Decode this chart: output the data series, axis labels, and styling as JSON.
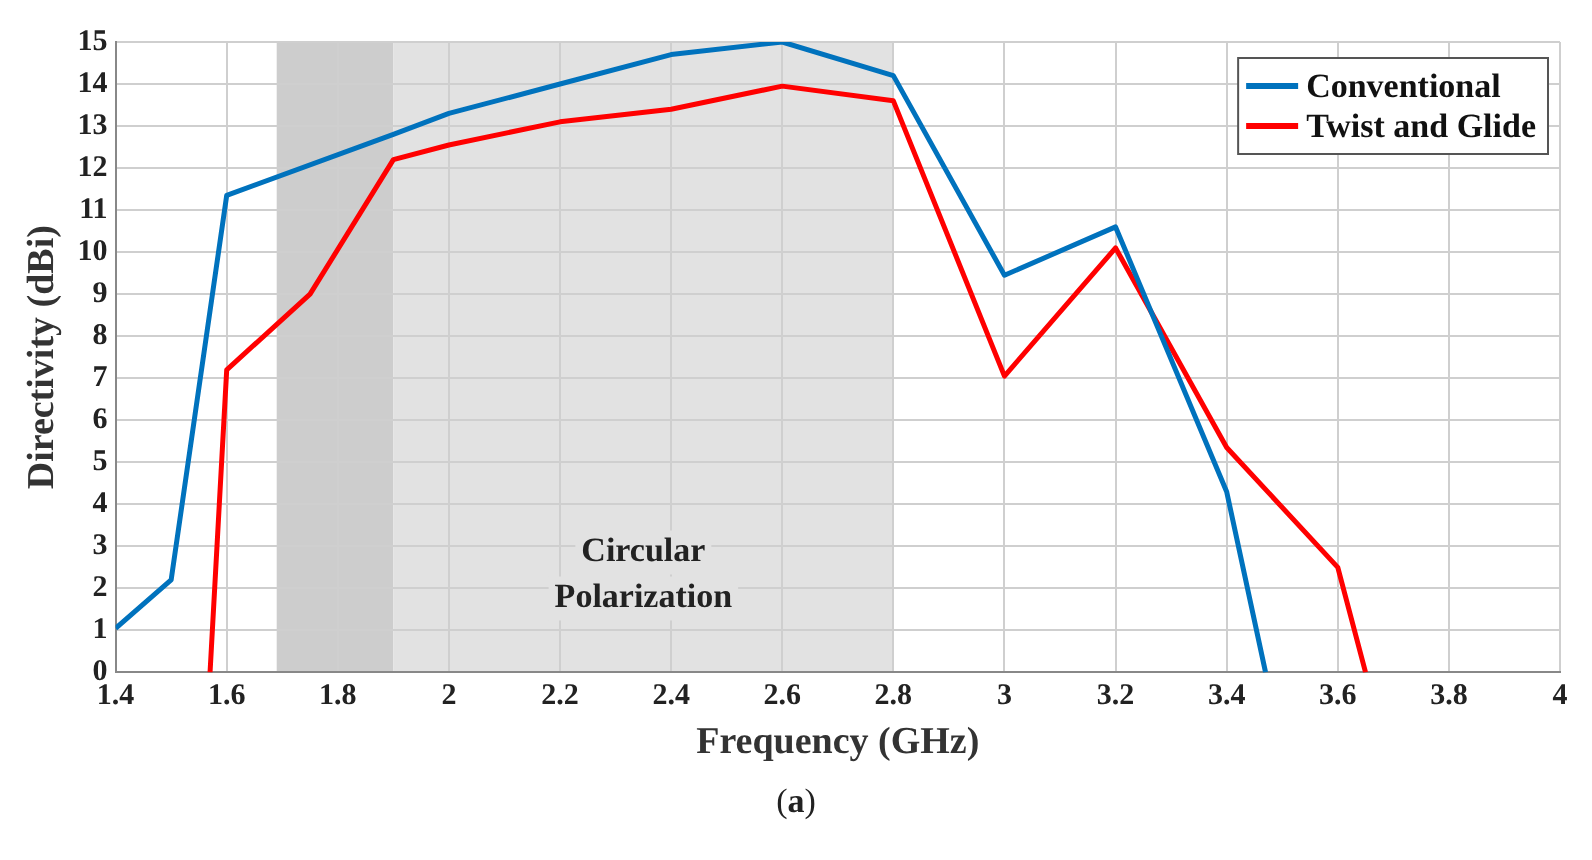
{
  "chart_data": {
    "type": "line",
    "xlabel": "Frequency (GHz)",
    "ylabel": "Directivity (dBi)",
    "xlim": [
      1.4,
      4
    ],
    "xticks": [
      1.4,
      1.6,
      1.8,
      2,
      2.2,
      2.4,
      2.6,
      2.8,
      3,
      3.2,
      3.4,
      3.6,
      3.8,
      4
    ],
    "ylim": [
      0,
      15
    ],
    "yticks": [
      0,
      1,
      2,
      3,
      4,
      5,
      6,
      7,
      8,
      9,
      10,
      11,
      12,
      13,
      14,
      15
    ],
    "grid": true,
    "legend": "top right",
    "marker": "none",
    "line_style": "solid",
    "series": [
      {
        "name": "Conventional",
        "color": "#0072bd",
        "x": [
          1.4,
          1.5,
          1.6,
          1.9,
          2.0,
          2.2,
          2.4,
          2.6,
          2.8,
          3.0,
          3.2,
          3.4,
          3.47
        ],
        "values": [
          1.05,
          2.2,
          11.35,
          12.8,
          13.3,
          14.0,
          14.7,
          15.0,
          14.2,
          9.45,
          10.6,
          4.3,
          0
        ]
      },
      {
        "name": "Twist and Glide",
        "color": "#ff0000",
        "x": [
          1.57,
          1.6,
          1.75,
          1.9,
          2.0,
          2.2,
          2.4,
          2.6,
          2.8,
          3.0,
          3.2,
          3.4,
          3.6,
          3.65
        ],
        "values": [
          0,
          7.2,
          9.0,
          12.2,
          12.55,
          13.1,
          13.4,
          13.95,
          13.6,
          7.05,
          10.1,
          5.35,
          2.5,
          0
        ]
      }
    ],
    "bands": [
      {
        "axis": "x",
        "from": 1.69,
        "to": 1.9,
        "color": "#cdcdcd"
      },
      {
        "axis": "x",
        "from": 1.9,
        "to": 2.8,
        "color": "#e2e2e2",
        "label": "Circular Polarization"
      }
    ],
    "annotations": [
      "(a)"
    ]
  }
}
